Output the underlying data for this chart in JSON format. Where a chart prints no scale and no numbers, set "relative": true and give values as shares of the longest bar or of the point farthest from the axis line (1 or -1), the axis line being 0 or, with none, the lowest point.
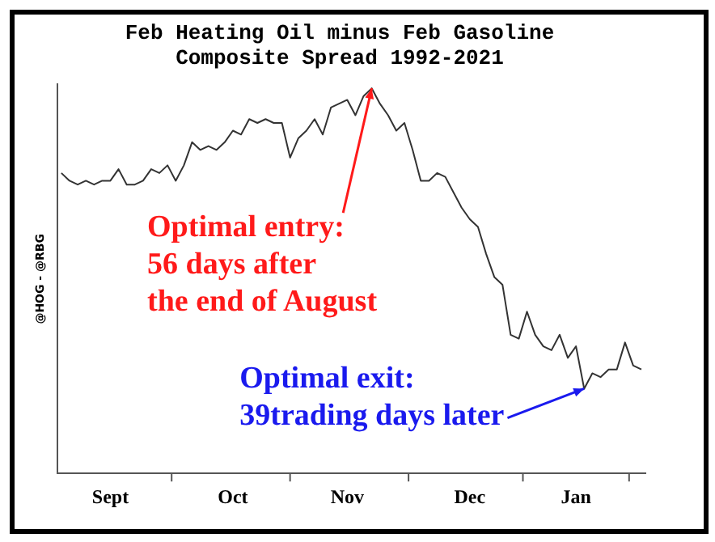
{
  "chart_data": {
    "type": "line",
    "title": "Feb Heating Oil minus Feb Gasoline\nComposite Spread 1992-2021",
    "ylabel": "@HOG - @RBG",
    "relative": true,
    "color": "#333333",
    "marker": "none",
    "grid": false,
    "legend": false,
    "categories": [
      null,
      null,
      null,
      null,
      null,
      null,
      "Sept",
      null,
      null,
      null,
      null,
      null,
      null,
      null,
      null,
      null,
      null,
      null,
      null,
      null,
      null,
      "Oct",
      null,
      null,
      null,
      null,
      null,
      null,
      null,
      null,
      null,
      null,
      null,
      null,
      null,
      "Nov",
      null,
      null,
      null,
      null,
      null,
      null,
      null,
      null,
      null,
      null,
      null,
      null,
      null,
      null,
      "Dec",
      null,
      null,
      null,
      null,
      null,
      null,
      null,
      null,
      null,
      null,
      null,
      null,
      "Jan",
      null,
      null,
      null,
      null,
      null,
      null,
      null,
      null
    ],
    "values": [
      0.78,
      0.76,
      0.75,
      0.76,
      0.75,
      0.76,
      0.76,
      0.79,
      0.75,
      0.75,
      0.76,
      0.79,
      0.78,
      0.8,
      0.76,
      0.8,
      0.86,
      0.84,
      0.85,
      0.84,
      0.86,
      0.89,
      0.88,
      0.92,
      0.91,
      0.92,
      0.91,
      0.91,
      0.82,
      0.87,
      0.89,
      0.92,
      0.88,
      0.95,
      0.96,
      0.97,
      0.93,
      0.98,
      1,
      0.96,
      0.93,
      0.89,
      0.91,
      0.84,
      0.76,
      0.76,
      0.78,
      0.77,
      0.73,
      0.69,
      0.66,
      0.64,
      0.57,
      0.51,
      0.49,
      0.36,
      0.35,
      0.42,
      0.36,
      0.33,
      0.32,
      0.36,
      0.3,
      0.33,
      0.22,
      0.26,
      0.25,
      0.27,
      0.27,
      0.34,
      0.28,
      0.27
    ],
    "annotations": [
      "Optimal entry:\n56 days after\nthe end of August",
      "Optimal exit:\n39trading days later"
    ]
  }
}
